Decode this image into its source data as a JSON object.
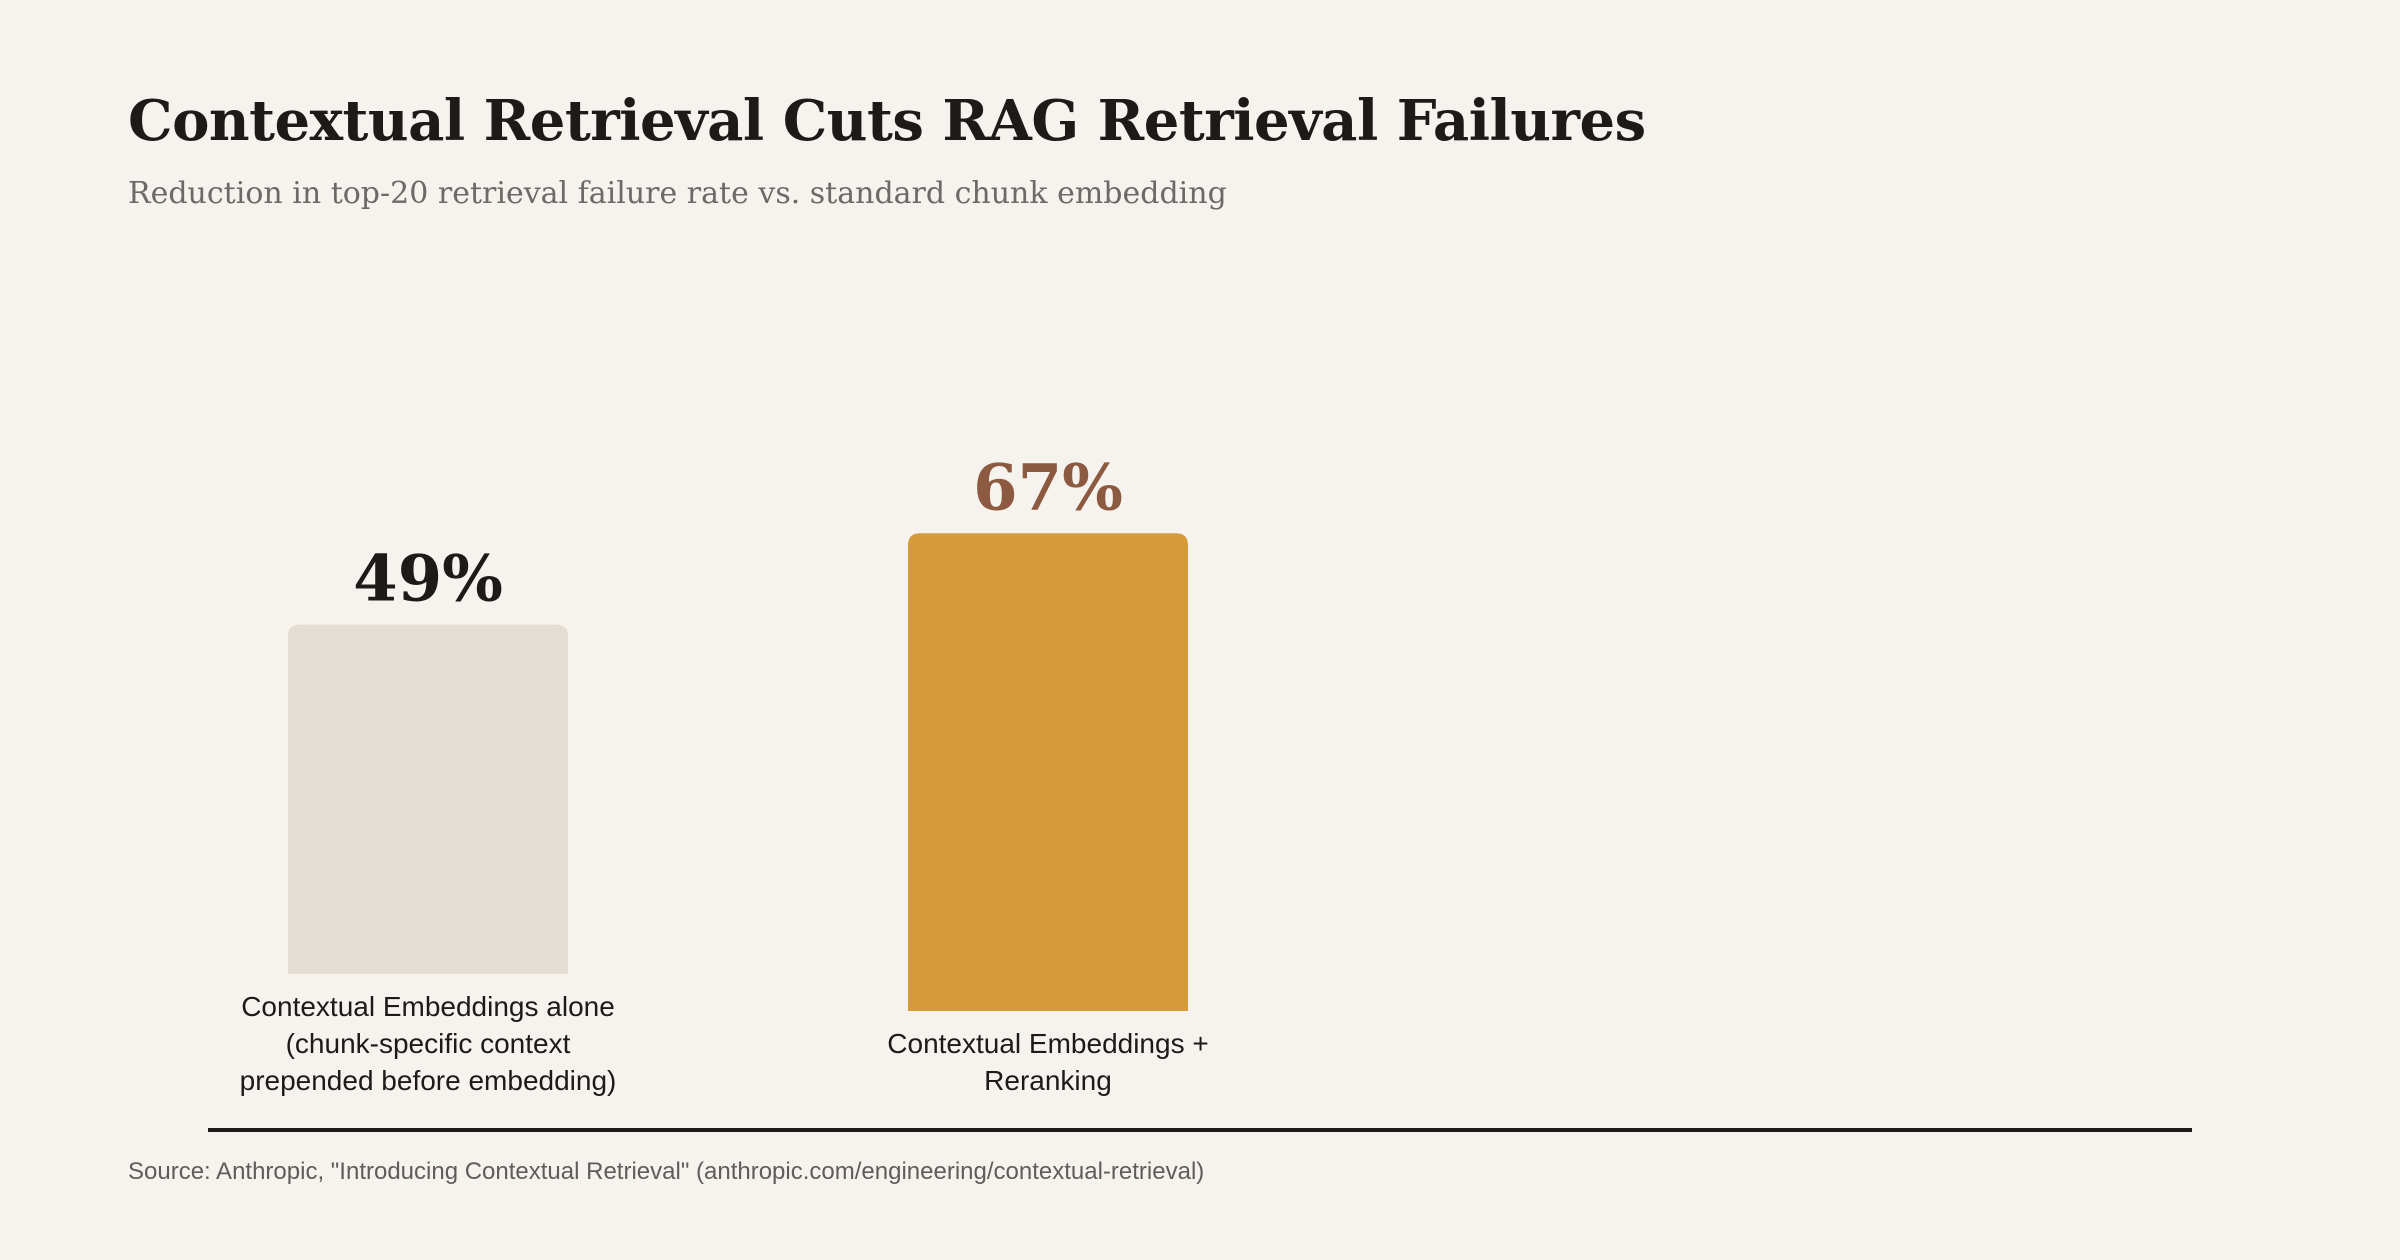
{
  "header": {
    "title": "Contextual Retrieval Cuts RAG Retrieval Failures",
    "subtitle": "Reduction in top-20 retrieval failure rate vs. standard chunk embedding"
  },
  "footer": {
    "source": "Source: Anthropic, \"Introducing Contextual Retrieval\" (anthropic.com/engineering/contextual-retrieval)"
  },
  "chart_data": {
    "type": "bar",
    "title": "Contextual Retrieval Cuts RAG Retrieval Failures",
    "subtitle": "Reduction in top-20 retrieval failure rate vs. standard chunk embedding",
    "categories": [
      [
        "Contextual Embeddings alone",
        "(chunk-specific context",
        "prepended before embedding)"
      ],
      [
        "Contextual Embeddings +",
        "Reranking"
      ]
    ],
    "values": [
      49,
      67
    ],
    "value_labels": [
      "49%",
      "67%"
    ],
    "unit": "%",
    "colors": {
      "bars": [
        "#e4ddd3",
        "#d59b3b"
      ],
      "value_labels": [
        "#1c1b19",
        "#8c5a40"
      ],
      "baseline": "#1c1b19"
    },
    "grid": false,
    "legend": "none"
  }
}
